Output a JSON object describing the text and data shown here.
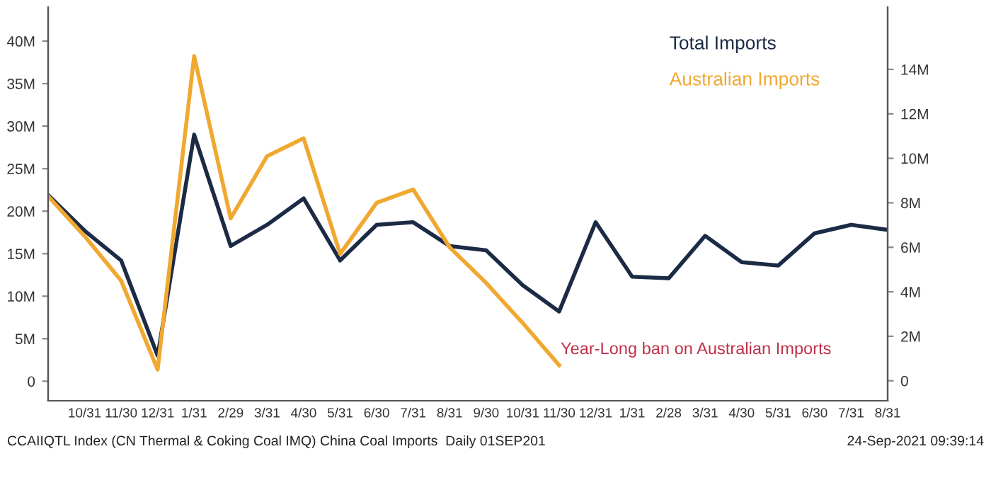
{
  "chart_data": {
    "type": "line",
    "categories": [
      null,
      "10/31",
      "11/30",
      "12/31",
      "1/31",
      "2/29",
      "3/31",
      "4/30",
      "5/31",
      "6/30",
      "7/31",
      "8/31",
      "9/30",
      "10/31",
      "11/30",
      "12/31",
      "1/31",
      "2/28",
      "3/31",
      "4/30",
      "5/31",
      "6/30",
      "7/31",
      "8/31"
    ],
    "series": [
      {
        "name": "Total Imports",
        "color": "#1c2b45",
        "values": [
          21.9,
          17.7,
          14.2,
          3.0,
          29.0,
          15.9,
          18.4,
          21.5,
          14.2,
          18.4,
          18.7,
          15.9,
          15.4,
          11.3,
          8.2,
          18.7,
          12.3,
          12.1,
          17.1,
          14.0,
          13.6,
          17.4,
          18.4,
          17.8
        ]
      },
      {
        "name": "Australian Imports",
        "color": "#f0a830",
        "axis": "y2",
        "values": [
          8.3,
          6.5,
          4.5,
          0.5,
          14.6,
          7.3,
          10.1,
          10.9,
          5.7,
          8.0,
          8.6,
          6.0,
          4.4,
          2.6,
          0.7,
          null,
          null,
          null,
          null,
          null,
          null,
          null,
          null,
          null
        ]
      }
    ],
    "ylim": [
      -2.3,
      44
    ],
    "yticks": [
      {
        "value": 0,
        "label": "0"
      },
      {
        "value": 5,
        "label": "5M"
      },
      {
        "value": 10,
        "label": "10M"
      },
      {
        "value": 15,
        "label": "15M"
      },
      {
        "value": 20,
        "label": "20M"
      },
      {
        "value": 25,
        "label": "25M"
      },
      {
        "value": 30,
        "label": "30M"
      },
      {
        "value": 35,
        "label": "35M"
      },
      {
        "value": 40,
        "label": "40M"
      }
    ],
    "y2lim": [
      -0.9,
      16.8
    ],
    "y2ticks": [
      {
        "value": 0,
        "label": "0"
      },
      {
        "value": 2,
        "label": "2M"
      },
      {
        "value": 4,
        "label": "4M"
      },
      {
        "value": 6,
        "label": "6M"
      },
      {
        "value": 8,
        "label": "8M"
      },
      {
        "value": 10,
        "label": "10M"
      },
      {
        "value": 12,
        "label": "12M"
      },
      {
        "value": 14,
        "label": "14M"
      }
    ],
    "legend": "top right",
    "grid": false,
    "marker": "none",
    "line_style": "solid",
    "annotations": [
      "Year-Long ban on Australian Imports",
      "CCAIIQTL Index (CN Thermal & Coking Coal IMQ) China Coal Imports  Daily 01SEP201",
      "24-Sep-2021 09:39:14"
    ]
  }
}
